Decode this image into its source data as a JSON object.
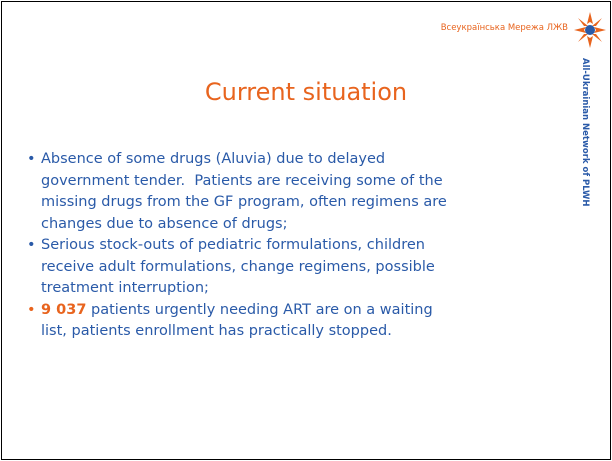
{
  "header": {
    "brand": "Всеукраїнська Мережа ЛЖВ",
    "side_text": "All-Ukrainian Network of PLWH"
  },
  "title": "Current situation",
  "bullets": [
    {
      "lines": [
        "Absence of some drugs (Aluvia) due to delayed",
        "government tender.  Patients are receiving some of the",
        "missing drugs from the GF program, often regimens are",
        "changes due to absence of drugs;"
      ]
    },
    {
      "lines": [
        "Serious stock-outs of pediatric formulations, children",
        "receive adult formulations, change regimens, possible",
        "treatment interruption;"
      ]
    },
    {
      "highlight": "9 037",
      "lines": [
        "patients urgently needing ART are on a waiting",
        "list, patients enrollment has practically stopped."
      ]
    }
  ]
}
